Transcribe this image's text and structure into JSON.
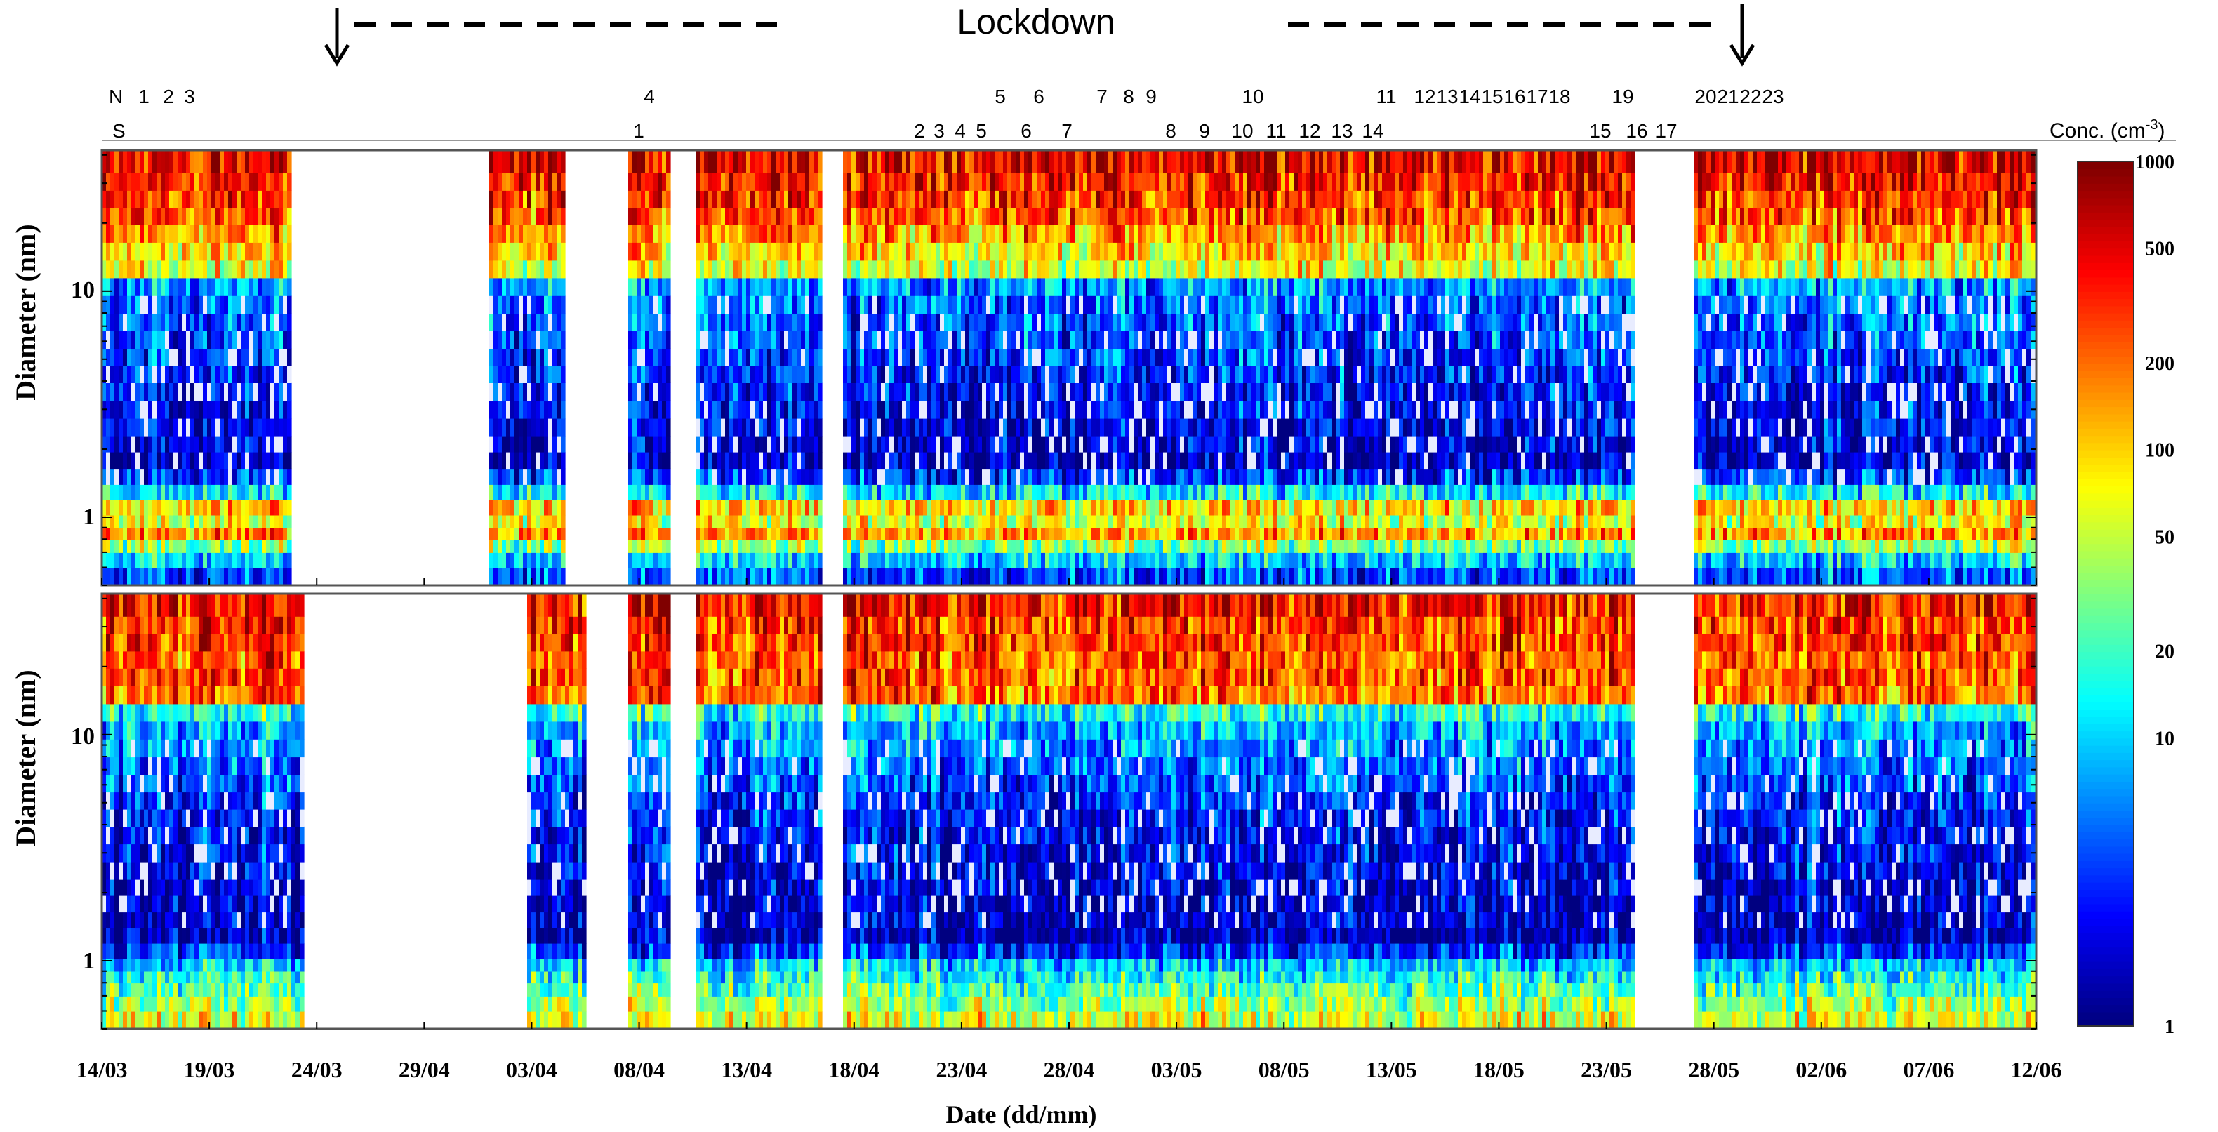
{
  "chart_data": {
    "type": "heatmap",
    "subtype": "particle number size distribution (time vs diameter)",
    "annotation_top": {
      "label": "Lockdown",
      "start_date": "24/03",
      "end_date": "31/05"
    },
    "event_rows": {
      "N_label": "N",
      "S_label": "S",
      "north_events": [
        "1",
        "2",
        "3",
        "4",
        "5",
        "6",
        "7",
        "8",
        "9",
        "10",
        "11",
        "12",
        "13",
        "14",
        "15",
        "16",
        "17",
        "18",
        "19",
        "20",
        "21",
        "22",
        "23"
      ],
      "south_events": [
        "1",
        "2",
        "3",
        "4",
        "5",
        "6",
        "7",
        "8",
        "9",
        "10",
        "11",
        "12",
        "13",
        "14",
        "15",
        "16",
        "17"
      ]
    },
    "x_axis": {
      "label": "Date (dd/mm)",
      "ticks": [
        "14/03",
        "19/03",
        "24/03",
        "29/04",
        "03/04",
        "08/04",
        "13/04",
        "18/04",
        "23/04",
        "28/04",
        "03/05",
        "08/05",
        "13/05",
        "18/05",
        "23/05",
        "28/05",
        "02/06",
        "07/06",
        "12/06"
      ],
      "range_days": [
        0,
        90
      ]
    },
    "panels": [
      {
        "name": "top",
        "ylabel": "Diameter (nm)",
        "yscale": "log",
        "ylim": [
          0.5,
          42
        ],
        "y_ticks": [
          "1",
          "10"
        ],
        "gaps_days": [
          [
            8.7,
            18.0
          ],
          [
            21.5,
            24.3
          ],
          [
            26.3,
            27.5
          ],
          [
            33.5,
            34.3
          ],
          [
            71.3,
            74.0
          ]
        ],
        "size_bins_nm": [
          0.55,
          0.65,
          0.75,
          0.85,
          0.95,
          1.1,
          1.3,
          1.5,
          1.8,
          2.1,
          2.5,
          3.0,
          3.6,
          4.3,
          5.1,
          6.1,
          7.3,
          8.7,
          10.5,
          12.5,
          15,
          18,
          21.5,
          25.5,
          30.5,
          36.5
        ],
        "bin_log10_conc_profile": [
          0.6,
          1.0,
          1.5,
          2.2,
          1.8,
          2.0,
          1.1,
          0.5,
          0.2,
          0.25,
          0.3,
          0.35,
          0.4,
          0.5,
          0.55,
          0.6,
          0.65,
          0.7,
          0.8,
          1.8,
          2.0,
          2.2,
          2.4,
          2.5,
          2.6,
          2.7
        ]
      },
      {
        "name": "bottom",
        "ylabel": "Diameter (nm)",
        "yscale": "log",
        "ylim": [
          0.5,
          42
        ],
        "y_ticks": [
          "1",
          "10"
        ],
        "gaps_days": [
          [
            9.4,
            19.6
          ],
          [
            22.4,
            24.4
          ],
          [
            26.3,
            27.5
          ],
          [
            33.4,
            34.4
          ],
          [
            71.3,
            74.0
          ]
        ],
        "size_bins_nm": [
          0.55,
          0.65,
          0.75,
          0.85,
          0.95,
          1.1,
          1.3,
          1.5,
          1.8,
          2.1,
          2.5,
          3.0,
          3.6,
          4.3,
          5.1,
          6.1,
          7.3,
          8.7,
          10.5,
          12.5,
          15,
          18,
          21.5,
          25.5,
          30.5,
          36.5
        ],
        "bin_log10_conc_profile": [
          1.8,
          1.6,
          1.4,
          1.2,
          1.0,
          0.5,
          0.15,
          0.2,
          0.2,
          0.25,
          0.3,
          0.35,
          0.4,
          0.45,
          0.5,
          0.6,
          0.7,
          0.8,
          0.9,
          1.2,
          2.3,
          2.4,
          2.4,
          2.5,
          2.5,
          2.6
        ]
      }
    ],
    "colorbar": {
      "label": "Conc. (cm",
      "label_sup": "-3",
      "label_end": ")",
      "scale": "log",
      "range": [
        1,
        1000
      ],
      "ticks": [
        "1",
        "10",
        "20",
        "50",
        "100",
        "200",
        "500",
        "1000"
      ],
      "colormap": "jet"
    }
  }
}
